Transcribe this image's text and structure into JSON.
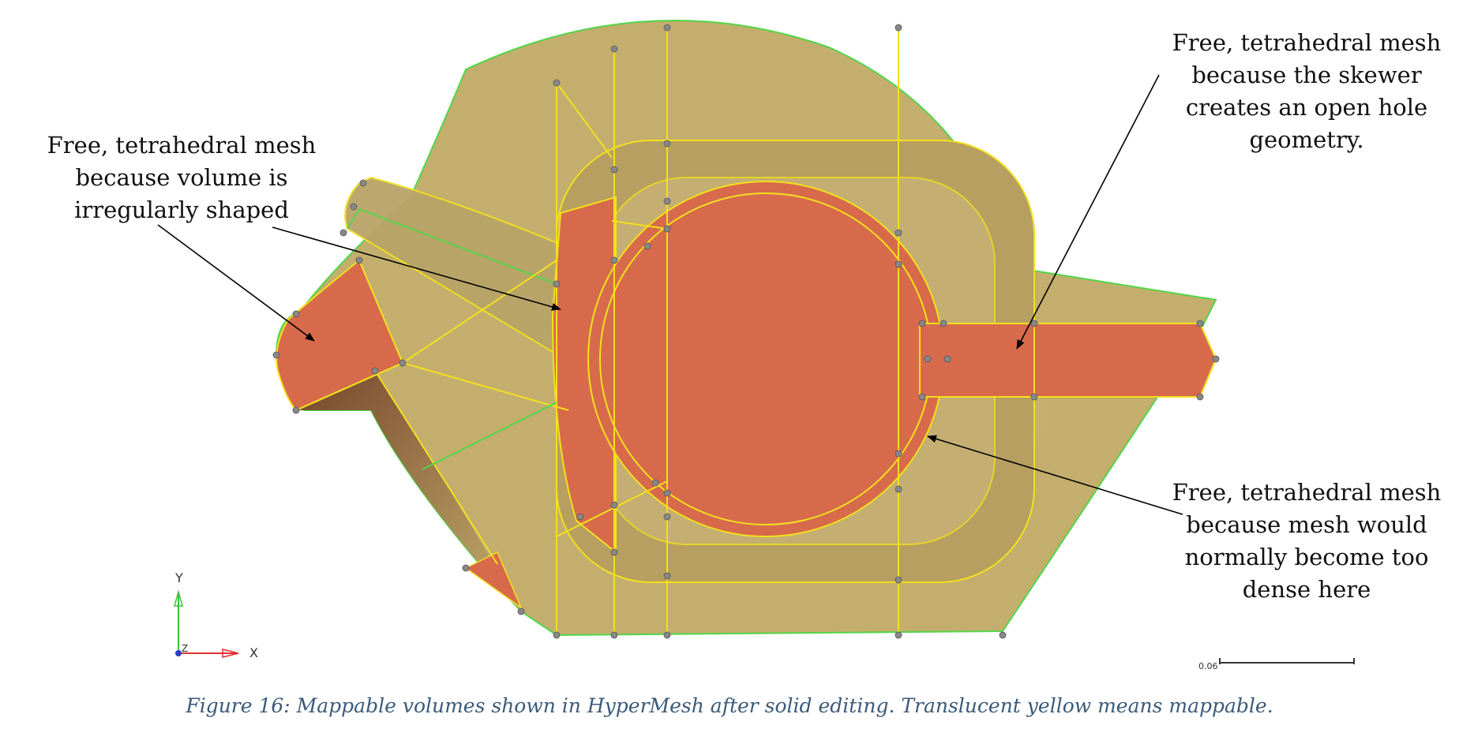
{
  "colors": {
    "mappable_yellow": "#c4ae6e",
    "free_mesh_orange": "#d86a4c",
    "edge_yellow": "#f2e01c",
    "outline_green": "#52d64a",
    "axis_y_green": "#39c439",
    "axis_x_red": "#e03030",
    "caption_blue": "#3b5a78"
  },
  "callouts": {
    "left": [
      "Free, tetrahedral mesh",
      "because volume is",
      "irregularly shaped"
    ],
    "top_right": [
      "Free, tetrahedral mesh",
      "because the skewer",
      "creates an open hole",
      "geometry."
    ],
    "bottom_right": [
      "Free, tetrahedral mesh",
      "because mesh would",
      "normally become too",
      "dense here"
    ]
  },
  "axis_triad": {
    "y_label": "Y",
    "x_label": "X",
    "z_label": "Z"
  },
  "scale_bar": {
    "label": "0.06"
  },
  "caption": "Figure 16: Mappable volumes shown in HyperMesh after solid editing. Translucent yellow means mappable."
}
